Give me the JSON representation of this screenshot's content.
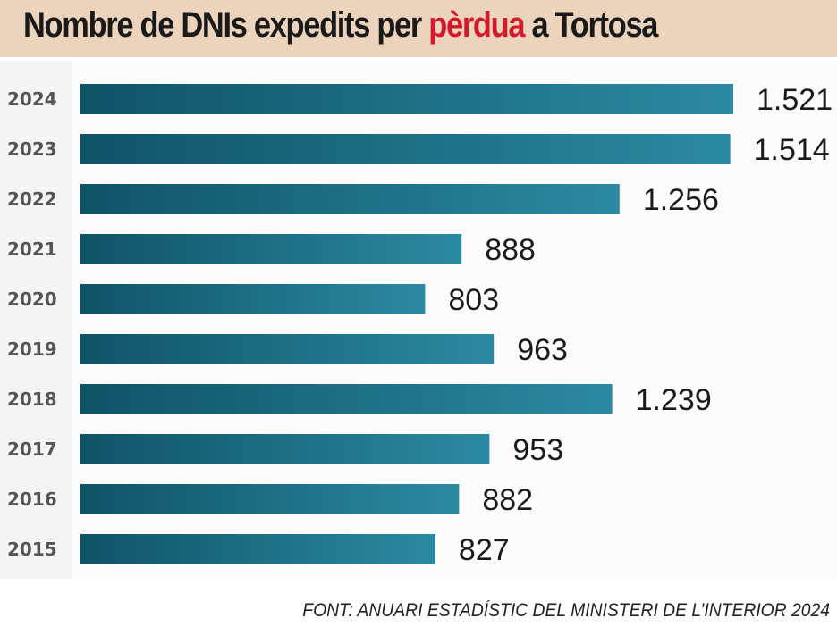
{
  "chart_data": {
    "type": "bar",
    "orientation": "horizontal",
    "title": {
      "prefix": "Nombre de DNIs expedits per ",
      "highlight": "pèrdua",
      "suffix": " a Tortosa"
    },
    "categories": [
      "2024",
      "2023",
      "2022",
      "2021",
      "2020",
      "2019",
      "2018",
      "2017",
      "2016",
      "2015"
    ],
    "values": [
      1521,
      1514,
      1256,
      888,
      803,
      963,
      1239,
      953,
      882,
      827
    ],
    "value_labels": [
      "1.521",
      "1.514",
      "1.256",
      "888",
      "803",
      "963",
      "1.239",
      "953",
      "882",
      "827"
    ],
    "xlabel": "",
    "ylabel": "",
    "xlim": [
      0,
      1600
    ],
    "grid": false,
    "legend": "none",
    "source": "FONT: ANUARI ESTADÍSTIC DEL MINISTERI DE L’INTERIOR 2024",
    "colors": {
      "bar_dark": "#0f5365",
      "bar_light": "#2b8aa2",
      "highlight": "#d3192b",
      "header_bg": "#ebd4bb"
    }
  }
}
